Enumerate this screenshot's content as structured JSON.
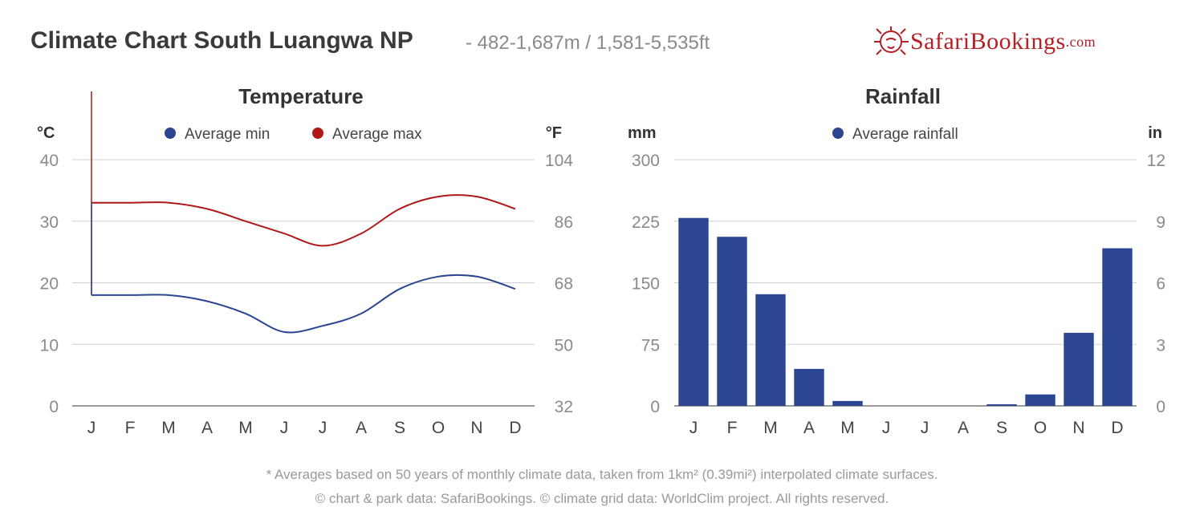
{
  "header": {
    "title": "Climate Chart South Luangwa NP",
    "subtitle": "- 482-1,687m / 1,581-5,535ft",
    "logo_text_a": "SafariBookings",
    "logo_text_b": ".com",
    "brand_color": "#b32025"
  },
  "footnotes": {
    "line1": "* Averages based on 50 years of monthly climate data, taken from 1km² (0.39mi²) interpolated climate surfaces.",
    "line2": "© chart & park data: SafariBookings. © climate grid data: WorldClim project. All rights reserved."
  },
  "chart_data": [
    {
      "type": "line",
      "title": "Temperature",
      "y_left_unit": "°C",
      "y_right_unit": "°F",
      "categories": [
        "J",
        "F",
        "M",
        "A",
        "M",
        "J",
        "J",
        "A",
        "S",
        "O",
        "N",
        "D"
      ],
      "ylim": [
        0,
        40
      ],
      "yticks_left": [
        "40",
        "30",
        "20",
        "10",
        "0"
      ],
      "yticks_right": [
        "104",
        "86",
        "68",
        "50",
        "32"
      ],
      "legend_placement": "top-center",
      "grid": true,
      "series": [
        {
          "name": "Average min",
          "color": "#2b4590",
          "values": [
            18,
            18,
            18,
            17,
            15,
            12,
            13,
            15,
            19,
            21,
            21,
            19
          ]
        },
        {
          "name": "Average max",
          "color": "#b01717",
          "values": [
            33,
            33,
            33,
            32,
            30,
            28,
            26,
            28,
            32,
            34,
            34,
            32
          ]
        }
      ]
    },
    {
      "type": "bar",
      "title": "Rainfall",
      "y_left_unit": "mm",
      "y_right_unit": "in",
      "categories": [
        "J",
        "F",
        "M",
        "A",
        "M",
        "J",
        "J",
        "A",
        "S",
        "O",
        "N",
        "D"
      ],
      "ylim": [
        0,
        300
      ],
      "yticks_left": [
        "300",
        "225",
        "150",
        "75",
        "0"
      ],
      "yticks_right": [
        "12",
        "9",
        "6",
        "3",
        "0"
      ],
      "legend_placement": "top-center",
      "grid": true,
      "series": [
        {
          "name": "Average rainfall",
          "color": "#2b4590",
          "values": [
            229,
            206,
            136,
            45,
            6,
            0,
            0,
            0,
            2,
            14,
            89,
            192
          ]
        }
      ]
    }
  ]
}
